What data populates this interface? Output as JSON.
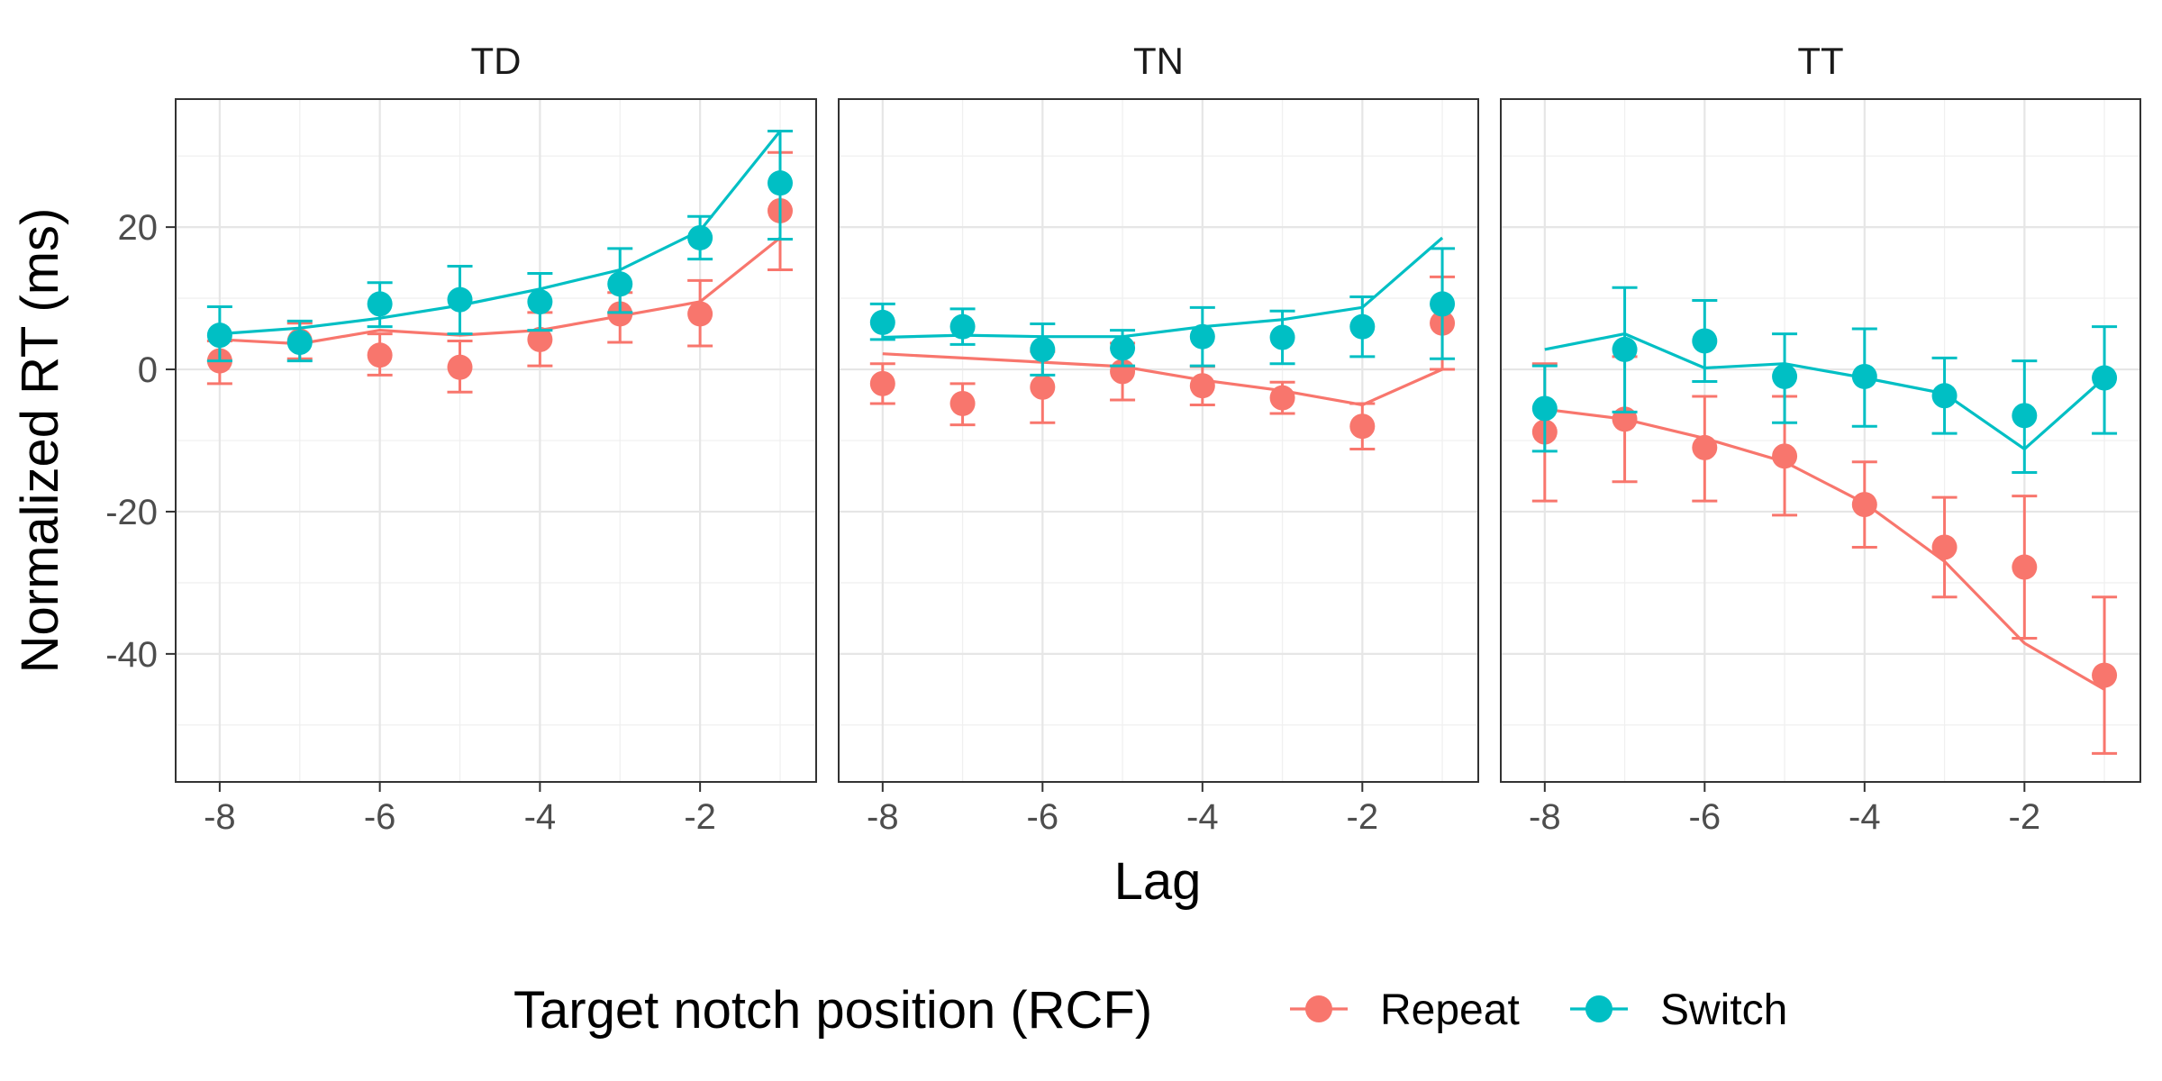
{
  "chart_data": {
    "type": "line",
    "xlabel": "Lag",
    "ylabel": "Normalized RT (ms)",
    "xlim": [
      -8.55,
      -0.55
    ],
    "ylim": [
      -58,
      38
    ],
    "x_ticks": [
      -8,
      -6,
      -4,
      -2
    ],
    "y_ticks": [
      -40,
      -20,
      0,
      20
    ],
    "grid": true,
    "legend": {
      "position": "bottom",
      "title": "Target notch position (RCF)",
      "entries": [
        {
          "name": "Repeat",
          "color": "#F8766D"
        },
        {
          "name": "Switch",
          "color": "#00BFC4"
        }
      ]
    },
    "x": [
      -8,
      -7,
      -6,
      -5,
      -4,
      -3,
      -2,
      -1
    ],
    "panels": [
      {
        "label": "TD",
        "series": [
          {
            "name": "Repeat",
            "color": "#F8766D",
            "points": [
              1.2,
              4.0,
              2.0,
              0.3,
              4.2,
              7.8,
              7.8,
              22.3
            ],
            "err_low": [
              -2.0,
              1.5,
              -0.8,
              -3.2,
              0.5,
              3.8,
              3.3,
              14.0
            ],
            "err_high": [
              4.0,
              6.5,
              5.0,
              4.0,
              8.0,
              10.8,
              12.5,
              30.5
            ],
            "fit": [
              4.2,
              3.6,
              5.5,
              4.8,
              5.5,
              7.5,
              9.5,
              18.5
            ]
          },
          {
            "name": "Switch",
            "color": "#00BFC4",
            "points": [
              4.8,
              3.8,
              9.2,
              9.8,
              9.5,
              12.0,
              18.5,
              26.2
            ],
            "err_low": [
              1.2,
              1.2,
              6.0,
              5.0,
              5.5,
              8.0,
              15.5,
              18.3
            ],
            "err_high": [
              8.8,
              6.8,
              12.2,
              14.5,
              13.5,
              17.0,
              21.5,
              33.5
            ],
            "fit": [
              5.0,
              5.8,
              7.2,
              9.0,
              11.3,
              14.0,
              19.5,
              33.5
            ]
          }
        ]
      },
      {
        "label": "TN",
        "series": [
          {
            "name": "Repeat",
            "color": "#F8766D",
            "points": [
              -2.0,
              -4.8,
              -2.5,
              -0.3,
              -2.3,
              -4.0,
              -8.0,
              6.5
            ],
            "err_low": [
              -4.8,
              -7.8,
              -7.5,
              -4.3,
              -5.0,
              -6.2,
              -11.2,
              0.0
            ],
            "err_high": [
              0.8,
              -2.0,
              2.5,
              3.7,
              0.4,
              -1.8,
              -4.8,
              13.0
            ],
            "fit": [
              2.2,
              1.6,
              1.0,
              0.4,
              -1.5,
              -3.0,
              -5.0,
              0.0
            ]
          },
          {
            "name": "Switch",
            "color": "#00BFC4",
            "points": [
              6.6,
              6.0,
              2.8,
              3.0,
              4.6,
              4.5,
              6.0,
              9.2
            ],
            "err_low": [
              4.2,
              3.5,
              -0.8,
              0.5,
              0.5,
              0.8,
              1.8,
              1.5
            ],
            "err_high": [
              9.2,
              8.5,
              6.4,
              5.5,
              8.7,
              8.2,
              10.2,
              17.0
            ],
            "fit": [
              4.5,
              4.8,
              4.6,
              4.6,
              6.0,
              7.0,
              8.7,
              18.5
            ]
          }
        ]
      },
      {
        "label": "TT",
        "series": [
          {
            "name": "Repeat",
            "color": "#F8766D",
            "points": [
              -8.8,
              -7.0,
              -11.0,
              -12.2,
              -19.0,
              -25.0,
              -27.8,
              -43.0
            ],
            "err_low": [
              -18.5,
              -15.8,
              -18.5,
              -20.5,
              -25.0,
              -32.0,
              -37.8,
              -54.0
            ],
            "err_high": [
              0.8,
              1.8,
              -3.8,
              -3.8,
              -13.0,
              -18.0,
              -17.8,
              -32.0
            ],
            "fit": [
              -5.6,
              -7.0,
              -9.7,
              -13.0,
              -18.8,
              -27.0,
              -38.5,
              -45.0
            ]
          },
          {
            "name": "Switch",
            "color": "#00BFC4",
            "points": [
              -5.5,
              2.8,
              4.0,
              -1.0,
              -1.0,
              -3.7,
              -6.5,
              -1.2
            ],
            "err_low": [
              -11.5,
              -6.0,
              -1.7,
              -7.5,
              -8.0,
              -9.0,
              -14.5,
              -9.0
            ],
            "err_high": [
              0.5,
              11.5,
              9.7,
              5.0,
              5.7,
              1.6,
              1.2,
              6.0
            ],
            "fit": [
              2.8,
              5.0,
              0.2,
              0.8,
              -1.2,
              -3.4,
              -11.2,
              -1.2
            ]
          }
        ]
      }
    ]
  }
}
